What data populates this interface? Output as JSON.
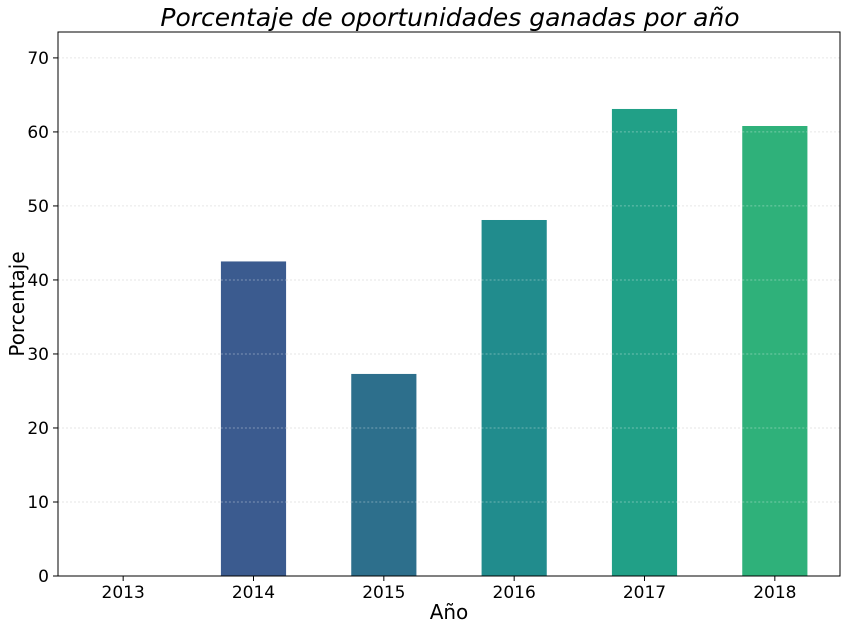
{
  "chart_data": {
    "type": "bar",
    "title": "Porcentaje de oportunidades ganadas por año",
    "xlabel": "Año",
    "ylabel": "Porcentaje",
    "categories": [
      "2013",
      "2014",
      "2015",
      "2016",
      "2017",
      "2018"
    ],
    "values": [
      0,
      42.5,
      27.3,
      48.1,
      63.1,
      60.8
    ],
    "ylim": [
      0,
      73.5
    ],
    "yticks": [
      0,
      10,
      20,
      30,
      40,
      50,
      60,
      70
    ],
    "grid": true,
    "colors": [
      "#433e85",
      "#3b5b8f",
      "#2d6f8c",
      "#218c8d",
      "#21a087",
      "#2fb17a"
    ],
    "grid_color": "#e6e6e6"
  }
}
